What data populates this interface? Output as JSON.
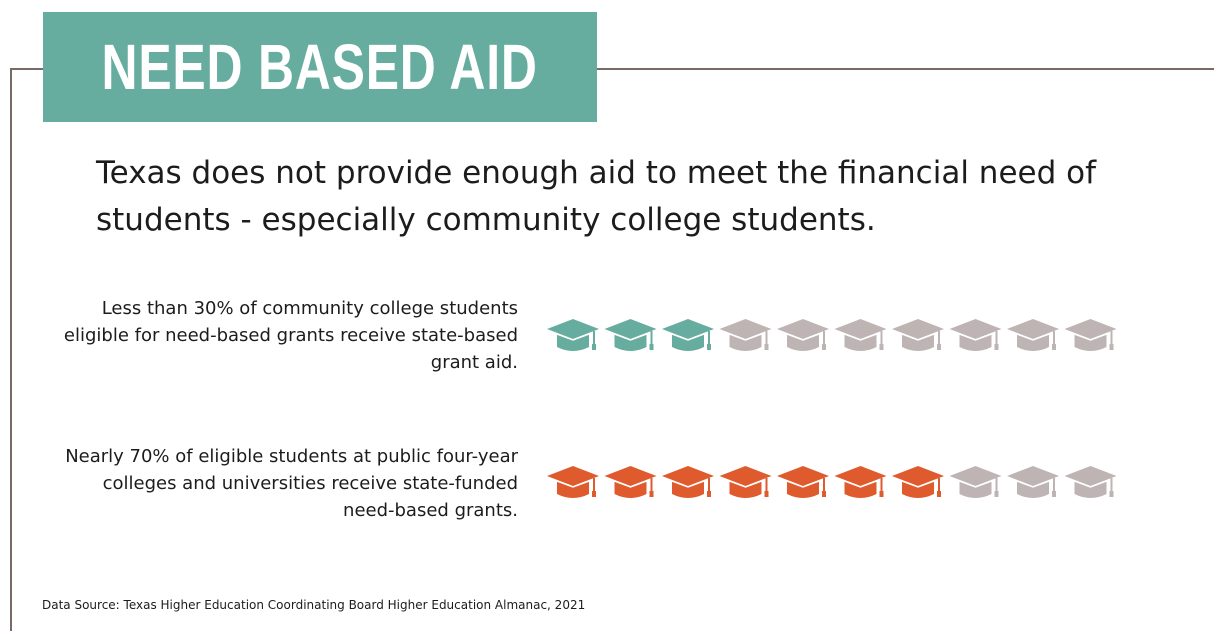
{
  "title": "NEED BASED AID",
  "headline": "Texas does not provide enough aid to meet the financial need of students - especially community college students.",
  "colors": {
    "banner": "#67ad9f",
    "community_college": "#67ad9f",
    "public_four_year": "#df5a2c",
    "inactive": "#bfb4b4"
  },
  "icon": "graduation-cap-icon",
  "chart_data": {
    "type": "pictograph",
    "icons_per_row": 10,
    "series": [
      {
        "label": "Less than 30% of community college students eligible for need-based grants receive state-based grant aid.",
        "filled": 3,
        "color": "#67ad9f"
      },
      {
        "label": "Nearly 70% of eligible students at public four-year colleges and universities receive state-funded need-based grants.",
        "filled": 7,
        "color": "#df5a2c"
      }
    ]
  },
  "source": "Data Source: Texas Higher Education Coordinating Board Higher Education Almanac, 2021"
}
